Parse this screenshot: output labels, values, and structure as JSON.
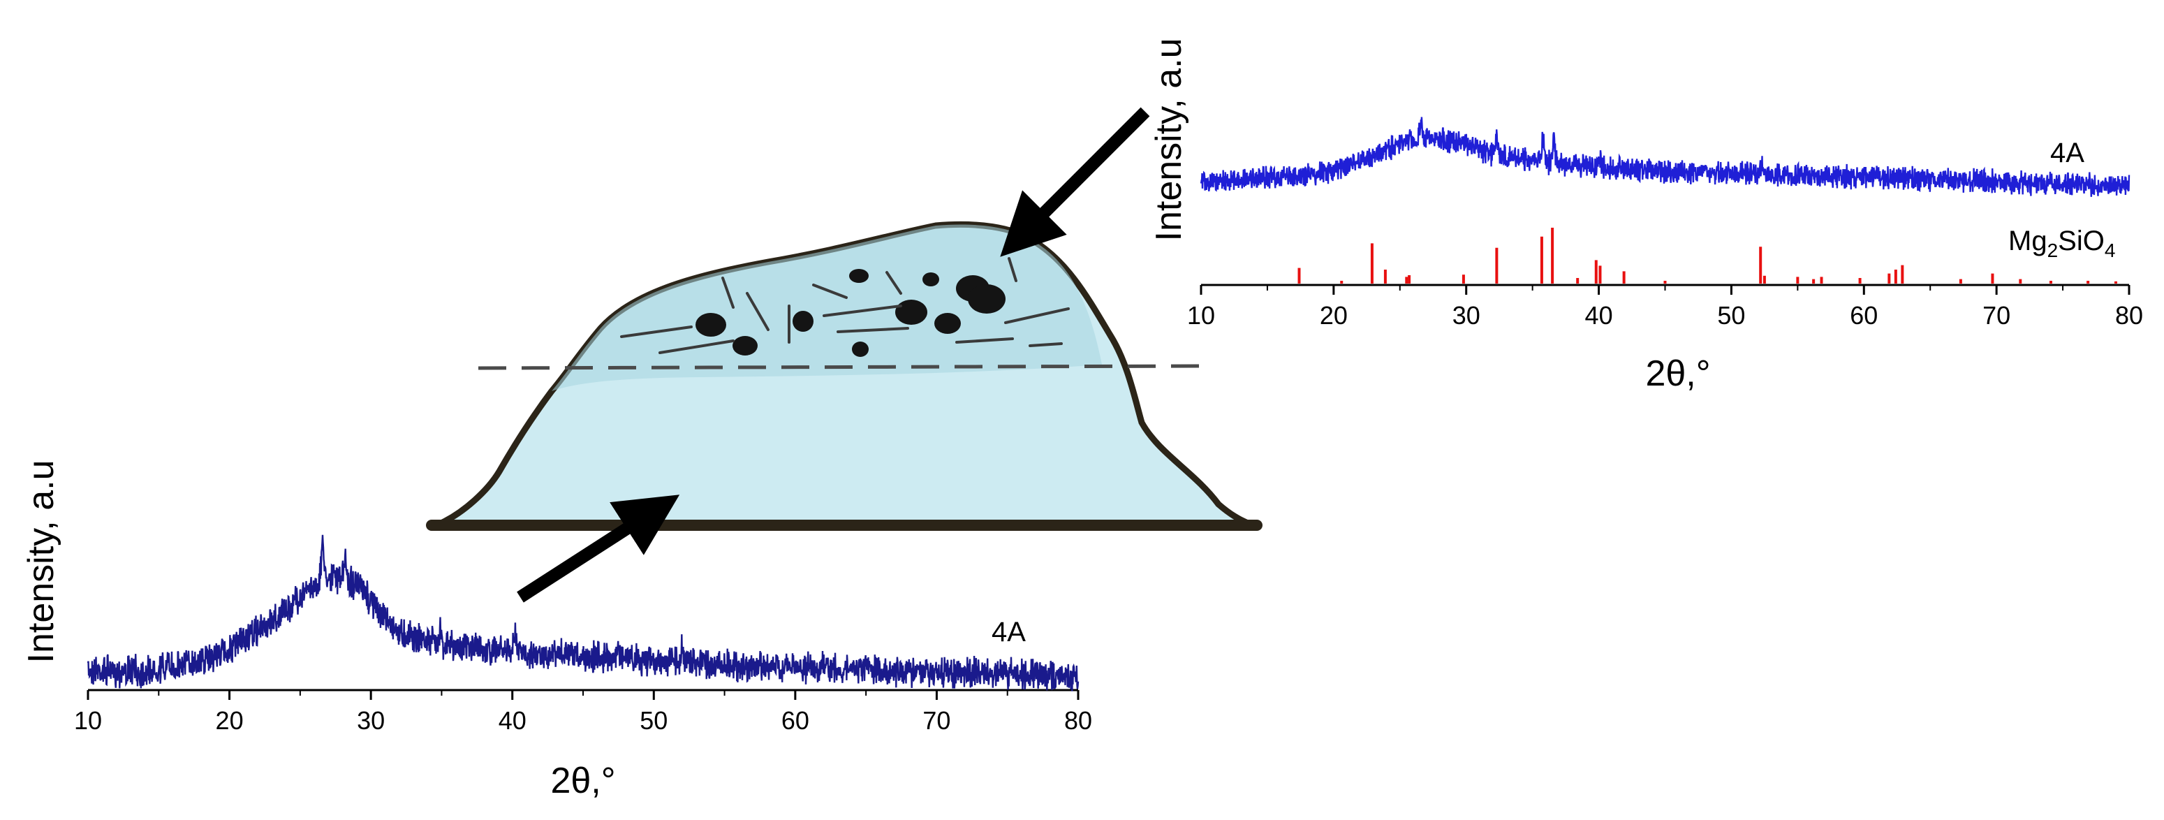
{
  "colors": {
    "pattern_trace": "#1a1a8c",
    "top_trace": "#1f1fd6",
    "reference_peaks": "#e81010",
    "droplet_fill": "#cdebf2",
    "droplet_outline": "#2b2418",
    "arrows": "#000000"
  },
  "chart_data": [
    {
      "type": "line",
      "panel": "bottom-left",
      "xlabel": "2θ,°",
      "ylabel": "Intensity, a.u",
      "xlim": [
        10,
        80
      ],
      "xticks": [
        "10",
        "20",
        "30",
        "40",
        "50",
        "60",
        "70",
        "80"
      ],
      "yticks": [],
      "grid": false,
      "series": [
        {
          "name": "4A",
          "style": "noisy XRD pattern",
          "x": [
            10,
            14,
            18,
            20,
            22,
            24,
            25,
            26,
            27,
            28,
            29,
            30,
            31,
            32,
            34,
            36,
            38,
            40,
            45,
            50,
            55,
            60,
            65,
            70,
            75,
            80
          ],
          "y": [
            0.12,
            0.1,
            0.2,
            0.3,
            0.46,
            0.65,
            0.78,
            0.88,
            0.96,
            0.95,
            0.88,
            0.74,
            0.58,
            0.46,
            0.38,
            0.33,
            0.3,
            0.28,
            0.24,
            0.2,
            0.16,
            0.14,
            0.12,
            0.1,
            0.08,
            0.06
          ],
          "spikes": [
            [
              26.6,
              1.28
            ],
            [
              28.2,
              1.1
            ],
            [
              34.9,
              0.5
            ],
            [
              40.2,
              0.42
            ],
            [
              47.5,
              0.34
            ],
            [
              52.0,
              0.32
            ]
          ]
        }
      ]
    },
    {
      "type": "line",
      "panel": "top-right",
      "xlabel": "2θ,°",
      "ylabel": "Intensity, a.u",
      "xlim": [
        10,
        80
      ],
      "xticks": [
        "10",
        "20",
        "30",
        "40",
        "50",
        "60",
        "70",
        "80"
      ],
      "yticks": [],
      "grid": false,
      "series": [
        {
          "name": "4A",
          "style": "noisy XRD pattern",
          "x": [
            10,
            14,
            18,
            20,
            22,
            24,
            26,
            27,
            28,
            30,
            32,
            34,
            36,
            38,
            40,
            45,
            50,
            55,
            60,
            65,
            70,
            75,
            80
          ],
          "y": [
            0.22,
            0.24,
            0.3,
            0.38,
            0.52,
            0.7,
            0.86,
            0.92,
            0.88,
            0.78,
            0.64,
            0.56,
            0.52,
            0.46,
            0.44,
            0.36,
            0.32,
            0.3,
            0.28,
            0.24,
            0.2,
            0.16,
            0.12
          ],
          "spikes": [
            [
              26.6,
              1.1
            ],
            [
              32.3,
              0.88
            ],
            [
              35.8,
              0.9
            ],
            [
              36.6,
              0.92
            ],
            [
              40.1,
              0.58
            ],
            [
              52.3,
              0.5
            ]
          ]
        },
        {
          "name": "Mg2SiO4",
          "label_parts": [
            [
              "Mg",
              ""
            ],
            [
              "2",
              "sub"
            ],
            [
              "SiO",
              ""
            ],
            [
              "4",
              "sub"
            ]
          ],
          "style": "reference stick pattern",
          "x": [
            17.4,
            20.6,
            22.9,
            23.9,
            25.5,
            25.7,
            29.8,
            32.3,
            35.7,
            36.5,
            38.4,
            39.8,
            40.1,
            41.9,
            45.0,
            52.2,
            52.5,
            55.0,
            56.2,
            56.8,
            59.7,
            61.9,
            62.4,
            62.9,
            67.3,
            69.7,
            71.8,
            74.1,
            76.9,
            79.0
          ],
          "y": [
            0.28,
            0.05,
            0.72,
            0.25,
            0.12,
            0.15,
            0.16,
            0.64,
            0.84,
            1.0,
            0.1,
            0.42,
            0.32,
            0.22,
            0.05,
            0.66,
            0.14,
            0.12,
            0.08,
            0.12,
            0.1,
            0.18,
            0.25,
            0.33,
            0.08,
            0.18,
            0.08,
            0.05,
            0.05,
            0.04
          ]
        }
      ]
    }
  ]
}
